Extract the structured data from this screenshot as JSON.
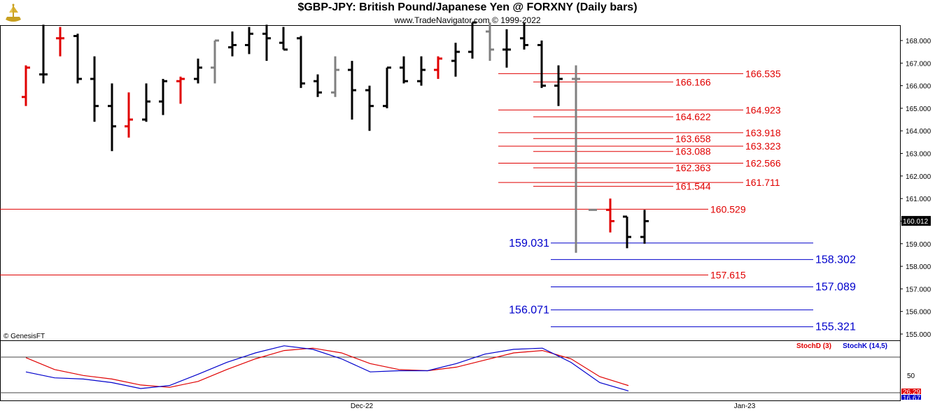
{
  "header": {
    "title": "$GBP-JPY:  British Pound/Japanese Yen @ FORXNY  (Daily bars)",
    "copyright": "www.TradeNavigator.com © 1999-2022",
    "genesis": "© GenesisFT"
  },
  "colors": {
    "up_bar": "#000000",
    "down_bar_red": "#e00000",
    "neutral_bar": "#808080",
    "red_level": "#e00000",
    "blue_level": "#0000cc",
    "stoch_d": "#e00000",
    "stoch_k": "#0000cc",
    "last_price_bg": "#000000"
  },
  "chart_data": [
    {
      "type": "bar",
      "name": "price",
      "y_axis": {
        "min": 155.0,
        "max": 168.0,
        "ticks": [
          "168.000",
          "167.000",
          "166.000",
          "165.000",
          "164.000",
          "163.000",
          "162.000",
          "161.000",
          "160.000",
          "159.000",
          "158.000",
          "157.000",
          "156.000",
          "155.000"
        ]
      },
      "last_price": "160.012",
      "bars": [
        {
          "x": 1,
          "o": 165.5,
          "h": 166.9,
          "l": 165.1,
          "c": 166.8,
          "color": "red"
        },
        {
          "x": 2,
          "o": 166.5,
          "h": 168.7,
          "l": 166.1,
          "c": 166.5,
          "color": "black"
        },
        {
          "x": 3,
          "o": 168.1,
          "h": 168.6,
          "l": 167.3,
          "c": 168.1,
          "color": "red"
        },
        {
          "x": 4,
          "o": 168.2,
          "h": 168.3,
          "l": 166.1,
          "c": 166.3,
          "color": "black"
        },
        {
          "x": 5,
          "o": 166.3,
          "h": 167.3,
          "l": 164.4,
          "c": 165.1,
          "color": "black"
        },
        {
          "x": 6,
          "o": 165.1,
          "h": 166.1,
          "l": 163.1,
          "c": 164.2,
          "color": "black"
        },
        {
          "x": 7,
          "o": 164.2,
          "h": 165.7,
          "l": 163.7,
          "c": 164.5,
          "color": "red"
        },
        {
          "x": 8,
          "o": 164.5,
          "h": 166.1,
          "l": 164.4,
          "c": 165.3,
          "color": "black"
        },
        {
          "x": 9,
          "o": 165.3,
          "h": 166.3,
          "l": 164.7,
          "c": 166.2,
          "color": "black"
        },
        {
          "x": 10,
          "o": 166.2,
          "h": 166.4,
          "l": 165.2,
          "c": 166.3,
          "color": "red"
        },
        {
          "x": 11,
          "o": 166.3,
          "h": 167.2,
          "l": 166.1,
          "c": 166.8,
          "color": "black"
        },
        {
          "x": 12,
          "o": 166.8,
          "h": 168.0,
          "l": 166.1,
          "c": 168.0,
          "color": "gray"
        },
        {
          "x": 13,
          "o": 167.7,
          "h": 168.4,
          "l": 167.3,
          "c": 167.8,
          "color": "black"
        },
        {
          "x": 14,
          "o": 167.8,
          "h": 168.6,
          "l": 167.4,
          "c": 168.3,
          "color": "black"
        },
        {
          "x": 15,
          "o": 168.3,
          "h": 168.7,
          "l": 167.1,
          "c": 168.1,
          "color": "black"
        },
        {
          "x": 16,
          "o": 167.9,
          "h": 168.6,
          "l": 167.6,
          "c": 167.6,
          "color": "black"
        },
        {
          "x": 17,
          "o": 168.1,
          "h": 168.2,
          "l": 165.9,
          "c": 166.1,
          "color": "black"
        },
        {
          "x": 18,
          "o": 166.2,
          "h": 166.5,
          "l": 165.5,
          "c": 165.7,
          "color": "black"
        },
        {
          "x": 19,
          "o": 165.7,
          "h": 167.3,
          "l": 165.5,
          "c": 166.7,
          "color": "gray"
        },
        {
          "x": 20,
          "o": 166.7,
          "h": 167.1,
          "l": 164.5,
          "c": 165.8,
          "color": "black"
        },
        {
          "x": 21,
          "o": 165.8,
          "h": 166.0,
          "l": 164.0,
          "c": 165.1,
          "color": "black"
        },
        {
          "x": 22,
          "o": 165.1,
          "h": 166.8,
          "l": 165.0,
          "c": 166.8,
          "color": "black"
        },
        {
          "x": 23,
          "o": 166.8,
          "h": 167.3,
          "l": 166.1,
          "c": 166.2,
          "color": "black"
        },
        {
          "x": 24,
          "o": 166.2,
          "h": 167.3,
          "l": 166.0,
          "c": 166.7,
          "color": "black"
        },
        {
          "x": 25,
          "o": 166.7,
          "h": 167.3,
          "l": 166.3,
          "c": 167.2,
          "color": "red"
        },
        {
          "x": 26,
          "o": 167.1,
          "h": 167.9,
          "l": 166.4,
          "c": 167.5,
          "color": "black"
        },
        {
          "x": 27,
          "o": 167.5,
          "h": 168.8,
          "l": 167.2,
          "c": 168.8,
          "color": "black"
        },
        {
          "x": 28,
          "o": 168.4,
          "h": 168.8,
          "l": 167.1,
          "c": 167.6,
          "color": "gray"
        },
        {
          "x": 29,
          "o": 167.6,
          "h": 168.5,
          "l": 166.8,
          "c": 167.6,
          "color": "black"
        },
        {
          "x": 30,
          "o": 168.1,
          "h": 168.8,
          "l": 167.6,
          "c": 167.8,
          "color": "black"
        },
        {
          "x": 31,
          "o": 167.8,
          "h": 168.0,
          "l": 165.9,
          "c": 166.0,
          "color": "black"
        },
        {
          "x": 32,
          "o": 166.0,
          "h": 166.9,
          "l": 165.1,
          "c": 166.3,
          "color": "black"
        },
        {
          "x": 33,
          "o": 166.3,
          "h": 166.9,
          "l": 158.6,
          "c": 166.3,
          "color": "gray"
        },
        {
          "x": 34,
          "o": 160.5,
          "h": 160.5,
          "l": 160.5,
          "c": 160.5,
          "color": "gray"
        },
        {
          "x": 35,
          "o": 160.5,
          "h": 161.0,
          "l": 159.5,
          "c": 160.0,
          "color": "red"
        },
        {
          "x": 36,
          "o": 160.2,
          "h": 160.2,
          "l": 158.8,
          "c": 159.3,
          "color": "black"
        },
        {
          "x": 37,
          "o": 159.3,
          "h": 160.5,
          "l": 159.0,
          "c": 160.0,
          "color": "black"
        }
      ],
      "levels": [
        {
          "value": 166.535,
          "label": "166.535",
          "color": "red"
        },
        {
          "value": 166.166,
          "label": "166.166",
          "color": "red"
        },
        {
          "value": 164.923,
          "label": "164.923",
          "color": "red"
        },
        {
          "value": 164.622,
          "label": "164.622",
          "color": "red"
        },
        {
          "value": 163.918,
          "label": "163.918",
          "color": "red"
        },
        {
          "value": 163.658,
          "label": "163.658",
          "color": "red"
        },
        {
          "value": 163.323,
          "label": "163.323",
          "color": "red"
        },
        {
          "value": 163.088,
          "label": "163.088",
          "color": "red"
        },
        {
          "value": 162.566,
          "label": "162.566",
          "color": "red"
        },
        {
          "value": 162.363,
          "label": "162.363",
          "color": "red"
        },
        {
          "value": 161.711,
          "label": "161.711",
          "color": "red"
        },
        {
          "value": 161.544,
          "label": "161.544",
          "color": "red"
        },
        {
          "value": 160.529,
          "label": "160.529",
          "color": "red"
        },
        {
          "value": 159.031,
          "label": "159.031",
          "color": "blue"
        },
        {
          "value": 158.302,
          "label": "158.302",
          "color": "blue"
        },
        {
          "value": 157.615,
          "label": "157.615",
          "color": "red"
        },
        {
          "value": 157.089,
          "label": "157.089",
          "color": "blue"
        },
        {
          "value": 156.071,
          "label": "156.071",
          "color": "blue"
        },
        {
          "value": 155.321,
          "label": "155.321",
          "color": "blue"
        }
      ]
    },
    {
      "type": "line",
      "name": "stochastic",
      "y_axis": {
        "min": 0,
        "max": 100,
        "ticks": [
          "50"
        ]
      },
      "legend": [
        "StochD (3)",
        "StochK (14,5)"
      ],
      "last_values": [
        "26.29",
        "16.67"
      ],
      "x_labels": [
        "Dec-22",
        "Jan-23"
      ],
      "series": [
        {
          "name": "StochD (3)",
          "color": "red",
          "values": [
            [
              1,
              72
            ],
            [
              3,
              52
            ],
            [
              5,
              42
            ],
            [
              7,
              36
            ],
            [
              9,
              26
            ],
            [
              11,
              22
            ],
            [
              13,
              32
            ],
            [
              15,
              52
            ],
            [
              17,
              70
            ],
            [
              19,
              84
            ],
            [
              21,
              88
            ],
            [
              23,
              80
            ],
            [
              25,
              62
            ],
            [
              27,
              52
            ],
            [
              29,
              50
            ],
            [
              31,
              56
            ],
            [
              33,
              68
            ],
            [
              35,
              80
            ],
            [
              37,
              84
            ],
            [
              39,
              70
            ],
            [
              41,
              40
            ],
            [
              43,
              25
            ]
          ]
        },
        {
          "name": "StochK (14,5)",
          "color": "blue",
          "values": [
            [
              1,
              48
            ],
            [
              3,
              38
            ],
            [
              5,
              36
            ],
            [
              7,
              30
            ],
            [
              9,
              20
            ],
            [
              11,
              25
            ],
            [
              13,
              44
            ],
            [
              15,
              64
            ],
            [
              17,
              80
            ],
            [
              19,
              92
            ],
            [
              21,
              86
            ],
            [
              23,
              70
            ],
            [
              25,
              48
            ],
            [
              27,
              50
            ],
            [
              29,
              50
            ],
            [
              31,
              62
            ],
            [
              33,
              78
            ],
            [
              35,
              86
            ],
            [
              37,
              88
            ],
            [
              39,
              64
            ],
            [
              41,
              30
            ],
            [
              43,
              16
            ]
          ]
        }
      ]
    }
  ]
}
